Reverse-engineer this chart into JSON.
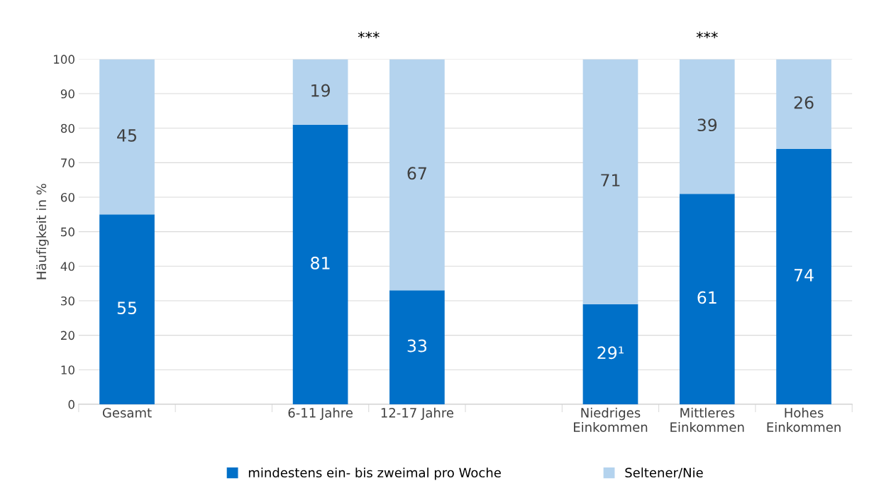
{
  "chart_data": {
    "type": "bar",
    "stacked": true,
    "ylabel": "Häufigkeit in %",
    "categories": [
      "Gesamt",
      null,
      "6-11 Jahre",
      "12-17 Jahre",
      null,
      "Niedriges\nEinkommen",
      "Mittleres\nEinkommen",
      "Hohes\nEinkommen"
    ],
    "series": [
      {
        "name": "mindestens ein- bis zweimal pro Woche",
        "color": "#0070c8",
        "values": [
          55,
          null,
          81,
          33,
          null,
          29,
          61,
          74
        ],
        "value_labels": [
          "55",
          null,
          "81",
          "33",
          null,
          "29¹",
          "61",
          "74"
        ]
      },
      {
        "name": "Seltener/Nie",
        "color": "#b4d3ee",
        "values": [
          45,
          null,
          19,
          67,
          null,
          71,
          39,
          26
        ],
        "value_labels": [
          "45",
          null,
          "19",
          "67",
          null,
          "71",
          "39",
          "26"
        ]
      }
    ],
    "annotations": [
      "***",
      "***"
    ],
    "ylim": [
      0,
      100
    ],
    "yticks": [
      0,
      10,
      20,
      30,
      40,
      50,
      60,
      70,
      80,
      90,
      100
    ],
    "grid": "y",
    "legend": "bottom"
  }
}
